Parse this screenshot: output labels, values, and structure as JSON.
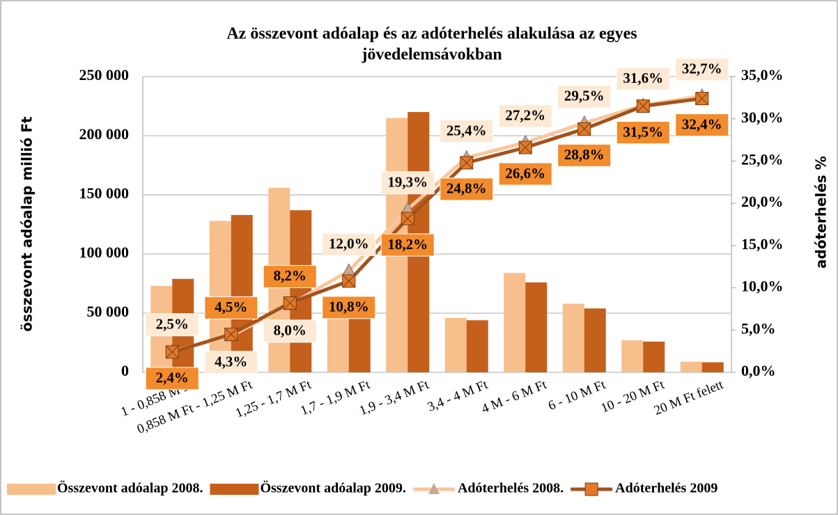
{
  "chart_data": {
    "type": "bar-line",
    "title": [
      "Az összevont adóalap és az adóterhelés alakulása  az egyes",
      "jövedelemsávokban"
    ],
    "y_label": "összevont adóalap millió Ft",
    "y2_label": "adóterhelés  %",
    "categories": [
      "1 - 0,858 M Ft",
      "0,858 M Ft - 1,25 M Ft",
      "1,25 - 1,7 M Ft",
      "1,7 - 1,9 M Ft",
      "1,9 - 3,4 M Ft",
      "3,4 - 4 M Ft",
      "4 M - 6 M Ft",
      "6 - 10 M Ft",
      "10 - 20 M Ft",
      "20 M Ft felett"
    ],
    "series": [
      {
        "name": "Összevont adóalap 2008.",
        "kind": "bar",
        "color": "#f7bf8c",
        "values": [
          73000,
          128000,
          156000,
          61000,
          215000,
          46000,
          84000,
          58000,
          27000,
          9000
        ]
      },
      {
        "name": "Összevont adóalap 2009.",
        "kind": "bar",
        "color": "#c55f1c",
        "values": [
          79000,
          133000,
          137000,
          46000,
          220000,
          44000,
          76000,
          54000,
          26000,
          8500
        ]
      },
      {
        "name": "Adóterhelés 2008.",
        "kind": "line",
        "axis": "y2",
        "color": "#f9c79c",
        "label_fill": "#fde9d4",
        "marker": "triangle",
        "values": [
          2.5,
          4.3,
          8.0,
          12.0,
          19.3,
          25.4,
          27.2,
          29.5,
          31.6,
          32.7
        ],
        "value_labels": [
          "2,5%",
          "4,3%",
          "8,0%",
          "12,0%",
          "19,3%",
          "25,4%",
          "27,2%",
          "29,5%",
          "31,6%",
          "32,7%"
        ]
      },
      {
        "name": "Adóterhelés 2009",
        "kind": "line",
        "axis": "y2",
        "color": "#a4521c",
        "label_fill": "#f28b2c",
        "marker": "square",
        "values": [
          2.4,
          4.5,
          8.2,
          10.8,
          18.2,
          24.8,
          26.6,
          28.8,
          31.5,
          32.4
        ],
        "value_labels": [
          "2,4%",
          "4,5%",
          "8,2%",
          "10,8%",
          "18,2%",
          "24,8%",
          "26,6%",
          "28,8%",
          "31,5%",
          "32,4%"
        ]
      }
    ],
    "ylim": [
      0,
      250000
    ],
    "yticks": [
      0,
      {
        "value": 50000,
        "label": "50 000"
      },
      {
        "value": 100000,
        "label": "100 000"
      },
      {
        "value": 150000,
        "label": "150 000"
      },
      {
        "value": 200000,
        "label": "200 000"
      },
      {
        "value": 250000,
        "label": "250 000"
      }
    ],
    "y2lim": [
      0,
      35
    ],
    "y2ticks": [
      {
        "value": 0,
        "label": "0,0%"
      },
      {
        "value": 5,
        "label": "5,0%"
      },
      {
        "value": 10,
        "label": "10,0%"
      },
      {
        "value": 15,
        "label": "15,0%"
      },
      {
        "value": 20,
        "label": "20,0%"
      },
      {
        "value": 25,
        "label": "25,0%"
      },
      {
        "value": 30,
        "label": "30,0%"
      },
      {
        "value": 35,
        "label": "35,0%"
      }
    ],
    "grid": true,
    "legend": "bottom"
  }
}
